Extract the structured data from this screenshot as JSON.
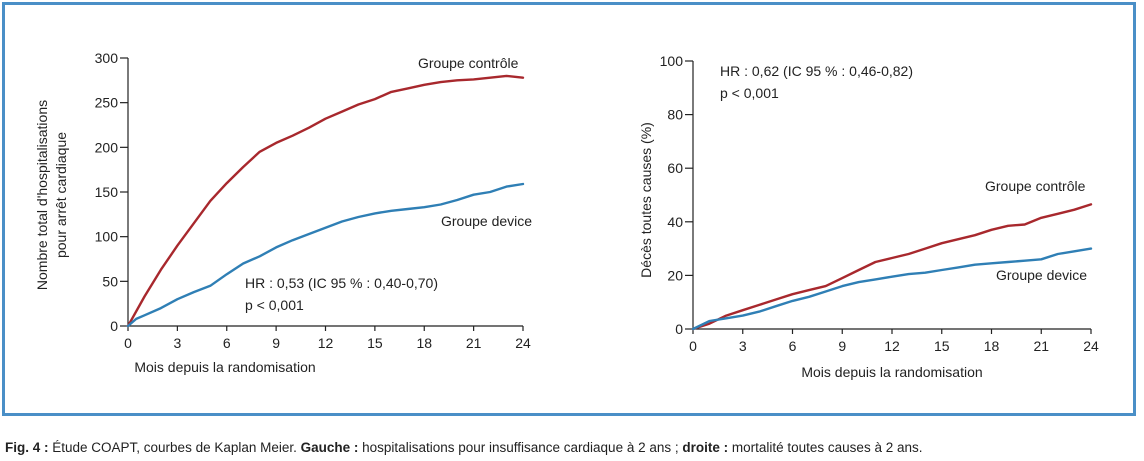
{
  "colors": {
    "frame": "#4a8fc7",
    "control": "#a8282d",
    "device": "#2f7fb5"
  },
  "chart_data": [
    {
      "type": "line",
      "xlabel": "Mois depuis la randomisation",
      "ylabel_lines": [
        "Nombre total d'hospitalisations",
        "pour arrêt cardiaque"
      ],
      "xlim": [
        0,
        24
      ],
      "ylim": [
        0,
        300
      ],
      "xticks": [
        0,
        3,
        6,
        9,
        12,
        15,
        18,
        21,
        24
      ],
      "yticks": [
        0,
        50,
        100,
        150,
        200,
        250,
        300
      ],
      "annotation": [
        "HR : 0,53 (IC 95 % : 0,40-0,70)",
        "p < 0,001"
      ],
      "series": [
        {
          "name": "Groupe contrôle",
          "color": "#a8282d",
          "x": [
            0,
            1,
            2,
            3,
            4,
            5,
            6,
            7,
            8,
            9,
            10,
            11,
            12,
            13,
            14,
            15,
            16,
            17,
            18,
            19,
            20,
            21,
            22,
            23,
            24
          ],
          "y": [
            0,
            33,
            63,
            90,
            115,
            140,
            160,
            178,
            195,
            205,
            213,
            222,
            232,
            240,
            248,
            254,
            262,
            266,
            270,
            273,
            275,
            276,
            278,
            280,
            278
          ]
        },
        {
          "name": "Groupe device",
          "color": "#2f7fb5",
          "x": [
            0,
            0.5,
            1,
            2,
            3,
            4,
            5,
            6,
            7,
            8,
            9,
            10,
            11,
            12,
            13,
            14,
            15,
            16,
            17,
            18,
            19,
            20,
            21,
            22,
            23,
            24
          ],
          "y": [
            0,
            8,
            12,
            20,
            30,
            38,
            45,
            58,
            70,
            78,
            88,
            96,
            103,
            110,
            117,
            122,
            126,
            129,
            131,
            133,
            136,
            141,
            147,
            150,
            156,
            159
          ]
        }
      ]
    },
    {
      "type": "line",
      "xlabel": "Mois depuis la randomisation",
      "ylabel": "Décès toutes causes (%)",
      "xlim": [
        0,
        24
      ],
      "ylim": [
        0,
        100
      ],
      "xticks": [
        0,
        3,
        6,
        9,
        12,
        15,
        18,
        21,
        24
      ],
      "yticks": [
        0,
        20,
        40,
        60,
        80,
        100
      ],
      "annotation": [
        "HR : 0,62 (IC 95 % : 0,46-0,82)",
        "p < 0,001"
      ],
      "series": [
        {
          "name": "Groupe contrôle",
          "color": "#a8282d",
          "x": [
            0,
            1,
            2,
            3,
            4,
            5,
            6,
            7,
            8,
            9,
            10,
            11,
            12,
            13,
            14,
            15,
            16,
            17,
            18,
            19,
            20,
            21,
            22,
            23,
            24
          ],
          "y": [
            0,
            2,
            5,
            7,
            9,
            11,
            13,
            14.5,
            16,
            19,
            22,
            25,
            26.5,
            28,
            30,
            32,
            33.5,
            35,
            37,
            38.5,
            39,
            41.5,
            43,
            44.5,
            46.5
          ]
        },
        {
          "name": "Groupe device",
          "color": "#2f7fb5",
          "x": [
            0,
            1,
            2,
            3,
            4,
            5,
            6,
            7,
            8,
            9,
            10,
            11,
            12,
            13,
            14,
            15,
            16,
            17,
            18,
            19,
            20,
            21,
            22,
            23,
            24
          ],
          "y": [
            0,
            3,
            4,
            5,
            6.5,
            8.5,
            10.5,
            12,
            14,
            16,
            17.5,
            18.5,
            19.5,
            20.5,
            21,
            22,
            23,
            24,
            24.5,
            25,
            25.5,
            26,
            28,
            29,
            30
          ]
        }
      ]
    }
  ],
  "caption": {
    "prefix": "Fig. 4 :",
    "text1": " Étude COAPT, courbes de Kaplan Meier. ",
    "bold1": "Gauche :",
    "text2": " hospitalisations pour insuffisance cardiaque à 2 ans ; ",
    "bold2": "droite :",
    "text3": " mortalité toutes causes à 2 ans."
  }
}
